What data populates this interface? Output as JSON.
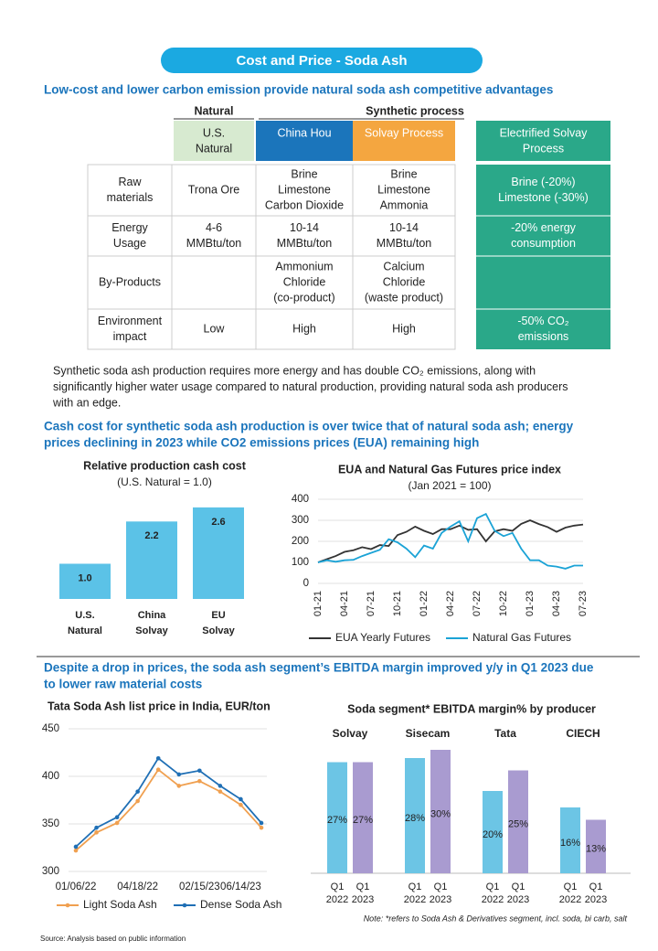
{
  "title": "Cost and Price - Soda Ash",
  "heading1": [
    "Low-cost and lower carbon emission provide natural soda ash competitive advantages"
  ],
  "table": {
    "groups": [
      "Natural",
      "Synthetic process"
    ],
    "columns": [
      [
        "U.S.",
        "Natural"
      ],
      [
        "China Hou"
      ],
      [
        "Solvay Process"
      ],
      [
        "Electrified Solvay",
        "Process"
      ]
    ],
    "rows": [
      {
        "label": [
          "Raw",
          "materials"
        ],
        "cells": [
          [
            "Trona Ore"
          ],
          [
            "Brine",
            "Limestone",
            "Carbon Dioxide"
          ],
          [
            "Brine",
            "Limestone",
            "Ammonia"
          ],
          [
            "Brine (-20%)",
            "Limestone (-30%)"
          ]
        ]
      },
      {
        "label": [
          "Energy",
          "Usage"
        ],
        "cells": [
          [
            "4-6",
            "MMBtu/ton"
          ],
          [
            "10-14",
            "MMBtu/ton"
          ],
          [
            "10-14",
            "MMBtu/ton"
          ],
          [
            "-20% energy",
            "consumption"
          ]
        ]
      },
      {
        "label": [
          "By-Products"
        ],
        "cells": [
          [],
          [
            "Ammonium",
            "Chloride",
            "(co-product)"
          ],
          [
            "Calcium",
            "Chloride",
            "(waste product)"
          ],
          []
        ]
      },
      {
        "label": [
          "Environment",
          "impact"
        ],
        "cells": [
          [
            "Low"
          ],
          [
            "High"
          ],
          [
            "High"
          ],
          [
            "-50% CO₂",
            "emissions"
          ]
        ]
      }
    ]
  },
  "paragraph": [
    "Synthetic soda ash production requires more energy and has double CO₂ emissions, along with",
    "significantly higher water usage compared to natural production, providing natural soda ash producers",
    "with an edge."
  ],
  "heading2": [
    "Cash cost for synthetic soda ash production is over twice that of natural soda ash; energy",
    "prices declining in 2023 while CO2 emissions prices (EUA) remaining high"
  ],
  "heading3": [
    "Despite a drop in prices, the soda ash segment’s EBITDA margin improved y/y in Q1 2023 due",
    "to lower raw material costs"
  ],
  "source": "Source: Analysis based on public information",
  "chart_data": [
    {
      "type": "bar",
      "title": "Relative production cash cost",
      "subtitle": "(U.S. Natural = 1.0)",
      "categories": [
        [
          "U.S.",
          "Natural"
        ],
        [
          "China",
          "Solvay"
        ],
        [
          "EU",
          "Solvay"
        ]
      ],
      "values": [
        1.0,
        2.2,
        2.6
      ],
      "value_labels": [
        "1.0",
        "2.2",
        "2.6"
      ],
      "color": "#5bc2e7"
    },
    {
      "type": "line",
      "title": "EUA and Natural Gas Futures price index",
      "subtitle": "(Jan 2021 = 100)",
      "categories": [
        "01-21",
        null,
        null,
        "04-21",
        null,
        null,
        "07-21",
        null,
        null,
        "10-21",
        null,
        null,
        "01-22",
        null,
        null,
        "04-22",
        null,
        null,
        "07-22",
        null,
        null,
        "10-22",
        null,
        null,
        "01-23",
        null,
        null,
        "04-23",
        null,
        null,
        "07-23"
      ],
      "ylim": [
        0,
        400
      ],
      "yticks": [
        0,
        100,
        200,
        300,
        400
      ],
      "grid": true,
      "series": [
        {
          "name": "EUA Yearly Futures",
          "color": "#333333",
          "values": [
            100,
            115,
            130,
            150,
            158,
            172,
            163,
            182,
            178,
            230,
            245,
            270,
            250,
            235,
            258,
            258,
            275,
            255,
            258,
            200,
            248,
            258,
            250,
            283,
            300,
            282,
            268,
            245,
            265,
            275,
            280
          ]
        },
        {
          "name": "Natural Gas Futures",
          "color": "#1ba3d6",
          "values": [
            100,
            110,
            103,
            110,
            112,
            130,
            145,
            160,
            210,
            195,
            165,
            125,
            180,
            165,
            240,
            270,
            295,
            200,
            310,
            330,
            250,
            225,
            240,
            165,
            110,
            110,
            85,
            80,
            70,
            85,
            85
          ]
        }
      ]
    },
    {
      "type": "line",
      "title": "Tata Soda Ash list price in India, EUR/ton",
      "categories": [
        "01/06/22",
        null,
        null,
        "04/18/22",
        null,
        null,
        "02/15/23",
        null,
        "06/14/23",
        null
      ],
      "ylim": [
        300,
        450
      ],
      "yticks": [
        300,
        350,
        400,
        450
      ],
      "grid": true,
      "series": [
        {
          "name": "Light Soda Ash",
          "color": "#f0a050",
          "values": [
            322,
            341,
            351,
            374,
            407,
            390,
            395,
            384,
            370,
            346
          ]
        },
        {
          "name": "Dense Soda Ash",
          "color": "#1f6fb5",
          "values": [
            326,
            346,
            357,
            384,
            419,
            402,
            406,
            390,
            376,
            351
          ]
        }
      ]
    },
    {
      "type": "bar",
      "title": "Soda segment* EBITDA margin% by producer",
      "categories": [
        "Solvay",
        "Sisecam",
        "Tata",
        "CIECH"
      ],
      "bar_labels": [
        [
          "Q1",
          "2022"
        ],
        [
          "Q1",
          "2023"
        ]
      ],
      "series": [
        {
          "color": "#6cc5e5",
          "values": [
            27,
            28,
            20,
            16
          ],
          "value_labels": [
            "27%",
            "28%",
            "20%",
            "16%"
          ]
        },
        {
          "color": "#a99bd0",
          "values": [
            27,
            30,
            25,
            13
          ],
          "value_labels": [
            "27%",
            "30%",
            "25%",
            "13%"
          ]
        }
      ],
      "note": "Note: *refers to Soda Ash & Derivatives segment, incl. soda, bi carb, salt"
    }
  ]
}
